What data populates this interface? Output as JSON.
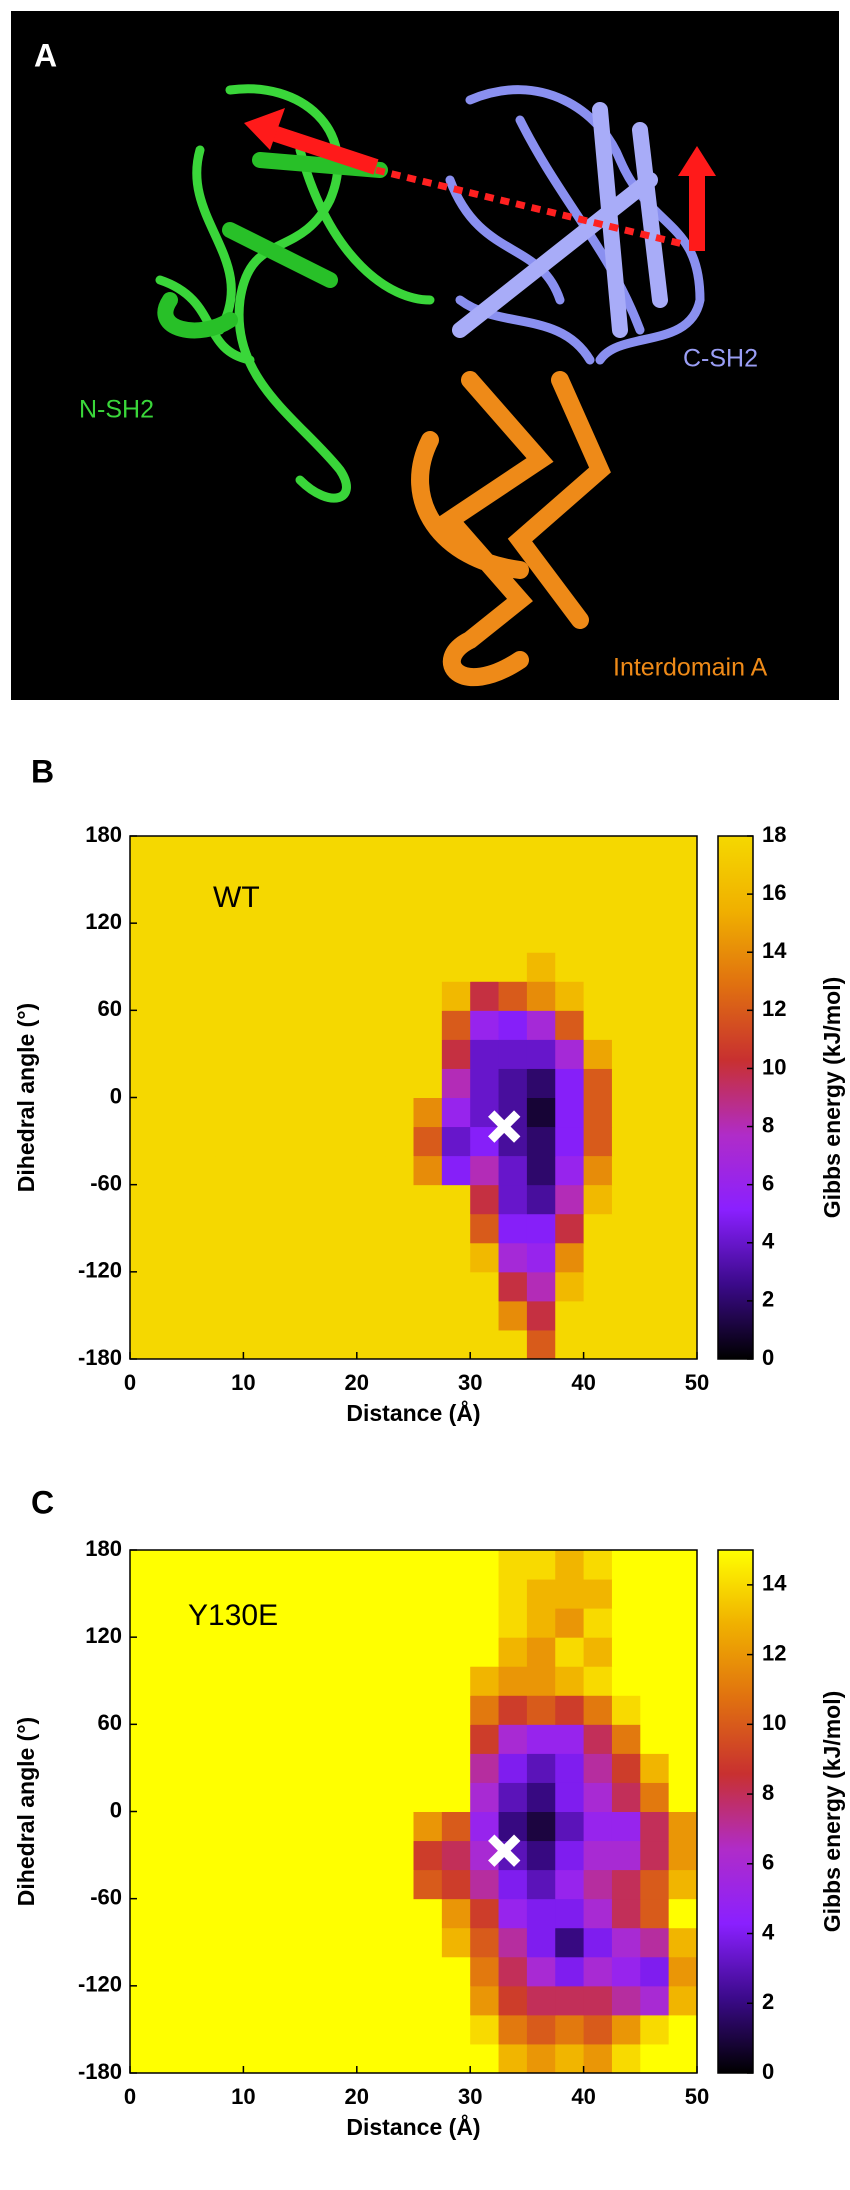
{
  "panel_a": {
    "label": "A",
    "labels": [
      "N-SH2",
      "C-SH2",
      "Interdomain A"
    ]
  },
  "chart_data": [
    {
      "type": "heatmap",
      "panel_label": "B",
      "annotation": "WT",
      "xlabel": "Distance (Å)",
      "ylabel": "Dihedral angle (°)",
      "colorbar_label": "Gibbs energy (kJ/mol)",
      "xlim": [
        0,
        50
      ],
      "ylim": [
        -180,
        180
      ],
      "zlim": [
        0,
        18
      ],
      "xticks": [
        0,
        10,
        20,
        30,
        40,
        50
      ],
      "yticks": [
        -180,
        -120,
        -60,
        0,
        60,
        120,
        180
      ],
      "zticks": [
        0,
        2,
        4,
        6,
        8,
        10,
        12,
        14,
        16,
        18
      ],
      "colormap": [
        "#000000",
        "#3b0a8a",
        "#8a20ff",
        "#b02cc8",
        "#c83030",
        "#e07010",
        "#f0b000",
        "#f5d800"
      ],
      "xbins": [
        0,
        2.5,
        5,
        7.5,
        10,
        12.5,
        15,
        17.5,
        20,
        22.5,
        25,
        27.5,
        30,
        32.5,
        35,
        37.5,
        40,
        42.5,
        45,
        47.5,
        50
      ],
      "ybins": [
        -180,
        -160,
        -140,
        -120,
        -100,
        -80,
        -60,
        -40,
        -20,
        0,
        20,
        40,
        60,
        80,
        100,
        120,
        140,
        160,
        180
      ],
      "z": [
        [
          18,
          18,
          18,
          18,
          18,
          18,
          18,
          18,
          18,
          18,
          18,
          18,
          18,
          18,
          12,
          18,
          18,
          18,
          18,
          18
        ],
        [
          18,
          18,
          18,
          18,
          18,
          18,
          18,
          18,
          18,
          18,
          18,
          18,
          18,
          14,
          10,
          18,
          18,
          18,
          18,
          18
        ],
        [
          18,
          18,
          18,
          18,
          18,
          18,
          18,
          18,
          18,
          18,
          18,
          18,
          18,
          10,
          8,
          16,
          18,
          18,
          18,
          18
        ],
        [
          18,
          18,
          18,
          18,
          18,
          18,
          18,
          18,
          18,
          18,
          18,
          18,
          16,
          7,
          6,
          14,
          18,
          18,
          18,
          18
        ],
        [
          18,
          18,
          18,
          18,
          18,
          18,
          18,
          18,
          18,
          18,
          18,
          18,
          12,
          5,
          5,
          10,
          18,
          18,
          18,
          18
        ],
        [
          18,
          18,
          18,
          18,
          18,
          18,
          18,
          18,
          18,
          18,
          18,
          18,
          10,
          4,
          3,
          8,
          16,
          18,
          18,
          18
        ],
        [
          18,
          18,
          18,
          18,
          18,
          18,
          18,
          18,
          18,
          18,
          14,
          5,
          8,
          4,
          2,
          6,
          14,
          18,
          18,
          18
        ],
        [
          18,
          18,
          18,
          18,
          18,
          18,
          18,
          18,
          18,
          18,
          12,
          4,
          5,
          3,
          2,
          5,
          12,
          18,
          18,
          18
        ],
        [
          18,
          18,
          18,
          18,
          18,
          18,
          18,
          18,
          18,
          18,
          14,
          6,
          4,
          3,
          1,
          5,
          12,
          18,
          18,
          18
        ],
        [
          18,
          18,
          18,
          18,
          18,
          18,
          18,
          18,
          18,
          18,
          18,
          8,
          4,
          3,
          2,
          5,
          12,
          18,
          18,
          18
        ],
        [
          18,
          18,
          18,
          18,
          18,
          18,
          18,
          18,
          18,
          18,
          18,
          10,
          4,
          4,
          4,
          7,
          15,
          18,
          18,
          18
        ],
        [
          18,
          18,
          18,
          18,
          18,
          18,
          18,
          18,
          18,
          18,
          18,
          12,
          6,
          5,
          7,
          12,
          18,
          18,
          18,
          18
        ],
        [
          18,
          18,
          18,
          18,
          18,
          18,
          18,
          18,
          18,
          18,
          18,
          16,
          10,
          12,
          14,
          16,
          18,
          18,
          18,
          18
        ],
        [
          18,
          18,
          18,
          18,
          18,
          18,
          18,
          18,
          18,
          18,
          18,
          18,
          18,
          18,
          16,
          18,
          18,
          18,
          18,
          18
        ],
        [
          18,
          18,
          18,
          18,
          18,
          18,
          18,
          18,
          18,
          18,
          18,
          18,
          18,
          18,
          18,
          18,
          18,
          18,
          18,
          18
        ],
        [
          18,
          18,
          18,
          18,
          18,
          18,
          18,
          18,
          18,
          18,
          18,
          18,
          18,
          18,
          18,
          18,
          18,
          18,
          18,
          18
        ],
        [
          18,
          18,
          18,
          18,
          18,
          18,
          18,
          18,
          18,
          18,
          18,
          18,
          18,
          18,
          18,
          18,
          18,
          18,
          18,
          18
        ],
        [
          18,
          18,
          18,
          18,
          18,
          18,
          18,
          18,
          18,
          18,
          18,
          18,
          18,
          18,
          18,
          18,
          18,
          18,
          18,
          18
        ]
      ],
      "markers": [
        {
          "x": 33,
          "y": -20
        }
      ]
    },
    {
      "type": "heatmap",
      "panel_label": "C",
      "annotation": "Y130E",
      "xlabel": "Distance (Å)",
      "ylabel": "Dihedral angle (°)",
      "colorbar_label": "Gibbs energy (kJ/mol)",
      "xlim": [
        0,
        50
      ],
      "ylim": [
        -180,
        180
      ],
      "zlim": [
        0,
        15
      ],
      "xticks": [
        0,
        10,
        20,
        30,
        40,
        50
      ],
      "yticks": [
        -180,
        -120,
        -60,
        0,
        60,
        120,
        180
      ],
      "zticks": [
        0,
        2,
        4,
        6,
        8,
        10,
        12,
        14
      ],
      "colormap": [
        "#000000",
        "#3b0a8a",
        "#8a20ff",
        "#b02cc8",
        "#c83030",
        "#e07010",
        "#f0b000",
        "#ffff00"
      ],
      "xbins": [
        0,
        2.5,
        5,
        7.5,
        10,
        12.5,
        15,
        17.5,
        20,
        22.5,
        25,
        27.5,
        30,
        32.5,
        35,
        37.5,
        40,
        42.5,
        45,
        47.5,
        50
      ],
      "ybins": [
        -180,
        -160,
        -140,
        -120,
        -100,
        -80,
        -60,
        -40,
        -20,
        0,
        20,
        40,
        60,
        80,
        100,
        120,
        140,
        160,
        180
      ],
      "z": [
        [
          15,
          15,
          15,
          15,
          15,
          15,
          15,
          15,
          15,
          15,
          15,
          15,
          15,
          13,
          12,
          13,
          12,
          14,
          15,
          15
        ],
        [
          15,
          15,
          15,
          15,
          15,
          15,
          15,
          15,
          15,
          15,
          15,
          15,
          14,
          11,
          10,
          11,
          10,
          12,
          14,
          15
        ],
        [
          15,
          15,
          15,
          15,
          15,
          15,
          15,
          15,
          15,
          15,
          15,
          15,
          12,
          9,
          8,
          8,
          8,
          7,
          6,
          13
        ],
        [
          15,
          15,
          15,
          15,
          15,
          15,
          15,
          15,
          15,
          15,
          15,
          15,
          11,
          8,
          6,
          4,
          6,
          5,
          4,
          12
        ],
        [
          15,
          15,
          15,
          15,
          15,
          15,
          15,
          15,
          15,
          15,
          15,
          13,
          10,
          7,
          4,
          2,
          4,
          6,
          7,
          13
        ],
        [
          15,
          15,
          15,
          15,
          15,
          15,
          15,
          15,
          15,
          15,
          15,
          12,
          9,
          5,
          4,
          4,
          6,
          8,
          10,
          15
        ],
        [
          15,
          15,
          15,
          15,
          15,
          15,
          15,
          15,
          15,
          15,
          10,
          9,
          7,
          4,
          3,
          5,
          7,
          8,
          10,
          13
        ],
        [
          15,
          15,
          15,
          15,
          15,
          15,
          15,
          15,
          15,
          15,
          9,
          8,
          6,
          3,
          2,
          4,
          6,
          6,
          8,
          12
        ],
        [
          15,
          15,
          15,
          15,
          15,
          15,
          15,
          15,
          15,
          15,
          12,
          10,
          5,
          2,
          1,
          3,
          5,
          5,
          8,
          12
        ],
        [
          15,
          15,
          15,
          15,
          15,
          15,
          15,
          15,
          15,
          15,
          15,
          15,
          6,
          3,
          2,
          4,
          6,
          8,
          11,
          15
        ],
        [
          15,
          15,
          15,
          15,
          15,
          15,
          15,
          15,
          15,
          15,
          15,
          15,
          7,
          4,
          3,
          4,
          7,
          9,
          13,
          15
        ],
        [
          15,
          15,
          15,
          15,
          15,
          15,
          15,
          15,
          15,
          15,
          15,
          15,
          9,
          6,
          5,
          5,
          8,
          11,
          15,
          15
        ],
        [
          15,
          15,
          15,
          15,
          15,
          15,
          15,
          15,
          15,
          15,
          15,
          15,
          11,
          9,
          10,
          9,
          11,
          14,
          15,
          15
        ],
        [
          15,
          15,
          15,
          15,
          15,
          15,
          15,
          15,
          15,
          15,
          15,
          15,
          13,
          12,
          12,
          13,
          14,
          15,
          15,
          15
        ],
        [
          15,
          15,
          15,
          15,
          15,
          15,
          15,
          15,
          15,
          15,
          15,
          15,
          15,
          13,
          12,
          14,
          13,
          15,
          15,
          15
        ],
        [
          15,
          15,
          15,
          15,
          15,
          15,
          15,
          15,
          15,
          15,
          15,
          15,
          15,
          14,
          13,
          12,
          14,
          15,
          15,
          15
        ],
        [
          15,
          15,
          15,
          15,
          15,
          15,
          15,
          15,
          15,
          15,
          15,
          15,
          15,
          14,
          13,
          13,
          13,
          15,
          15,
          15
        ],
        [
          15,
          15,
          15,
          15,
          15,
          15,
          15,
          15,
          15,
          15,
          15,
          15,
          15,
          14,
          14,
          13,
          14,
          15,
          15,
          15
        ]
      ],
      "markers": [
        {
          "x": 33,
          "y": -27
        }
      ]
    }
  ]
}
